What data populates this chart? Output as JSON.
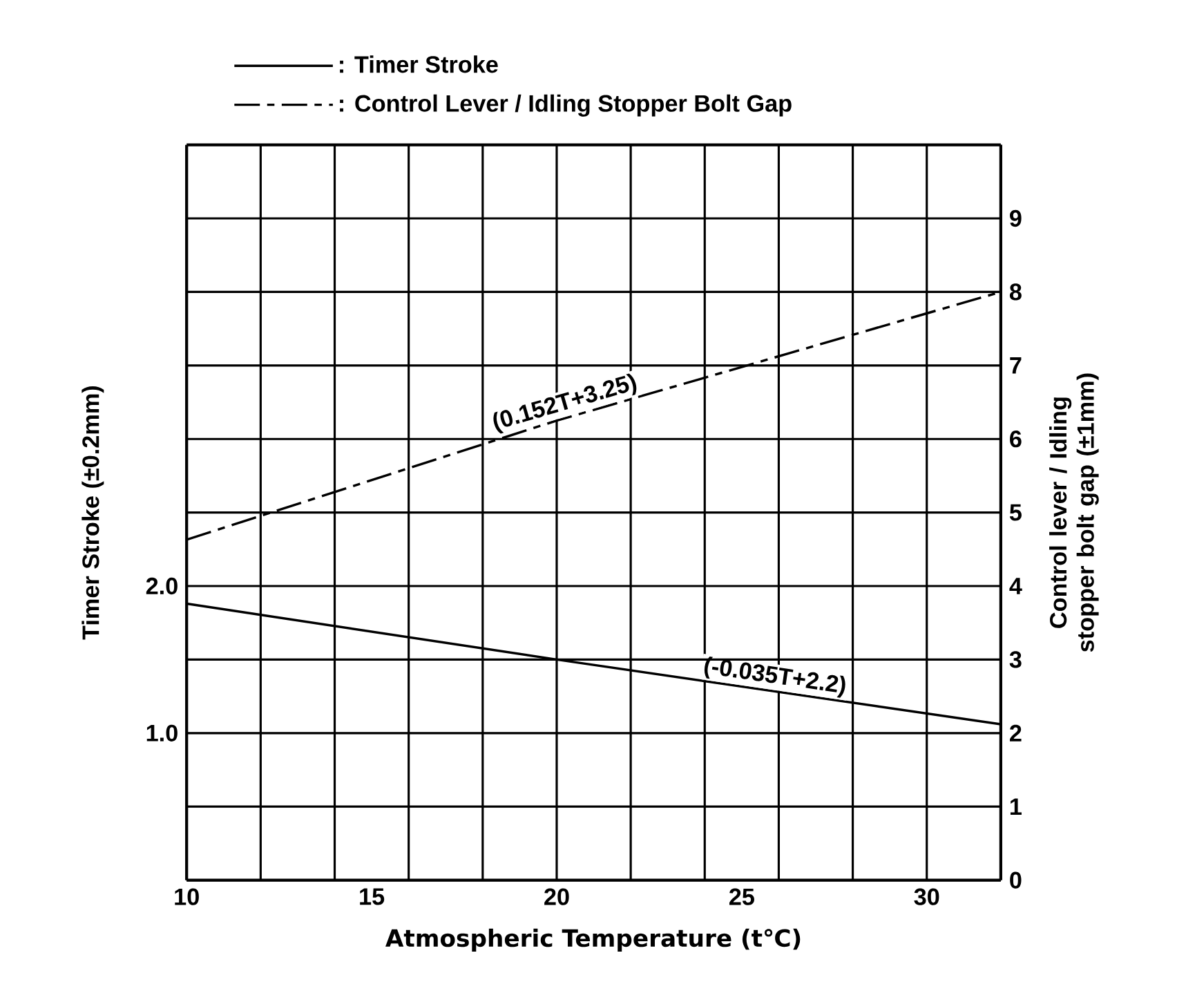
{
  "chart_data": {
    "type": "line",
    "xlabel": "Atmospheric Temperature (t℃)",
    "ylabel": "Timer Stroke (±0.2mm)",
    "y2label": "Control lever / Idling stopper bolt gap (±1mm)",
    "xlim": [
      10,
      32
    ],
    "xticks": [
      10,
      {
        "value": 12,
        "label": null
      },
      {
        "value": 14,
        "label": null
      },
      15,
      {
        "value": 16,
        "label": null
      },
      {
        "value": 18,
        "label": null
      },
      20,
      {
        "value": 22,
        "label": null
      },
      {
        "value": 24,
        "label": null
      },
      25,
      {
        "value": 26,
        "label": null
      },
      {
        "value": 28,
        "label": null
      },
      30,
      {
        "value": 32,
        "label": null
      }
    ],
    "ylim": [
      0,
      5
    ],
    "yticks": [
      {
        "value": 1,
        "label": "1.0"
      },
      {
        "value": 2,
        "label": "2.0"
      }
    ],
    "y2lim": [
      0,
      10
    ],
    "y2ticks": [
      0,
      1,
      2,
      3,
      4,
      5,
      6,
      7,
      8,
      9
    ],
    "grid": true,
    "legend": "top",
    "series": [
      {
        "name": ": Timer Stroke",
        "color": "#000000",
        "line_style": "solid",
        "x": [
          10,
          20,
          32
        ],
        "values": [
          1.88,
          1.5,
          1.06
        ]
      },
      {
        "name": ": Control Lever / Idling Stopper Bolt Gap",
        "color": "#000000",
        "line_style": "dashed",
        "axis": "y2",
        "x": [
          10,
          20,
          32
        ],
        "values": [
          4.63,
          6.25,
          8.0
        ]
      }
    ],
    "annotations": [
      "(-0.035T+2.2)",
      "(0.152T+3.25)"
    ]
  }
}
